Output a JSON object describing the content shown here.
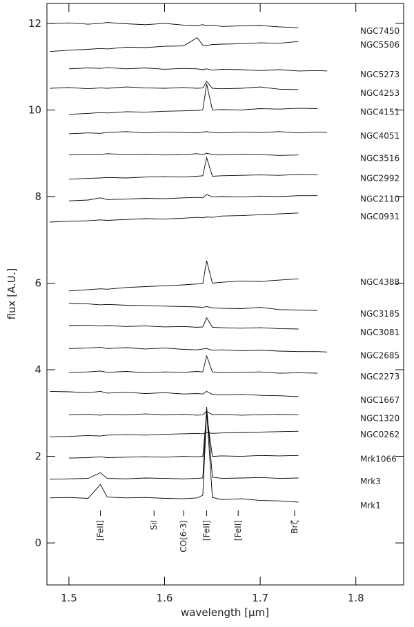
{
  "chart_data": {
    "type": "line",
    "x_label": "wavelength [μm]",
    "y_label": "flux [A.U.]",
    "xlim": [
      1.477,
      1.85
    ],
    "ylim": [
      -0.97,
      12.46
    ],
    "xticks": [
      1.5,
      1.6,
      1.7,
      1.8
    ],
    "yticks": [
      0,
      2,
      4,
      6,
      8,
      10,
      12
    ],
    "line_color": "#000000",
    "x": [
      1.48,
      1.5,
      1.52,
      1.533,
      1.54,
      1.56,
      1.58,
      1.6,
      1.62,
      1.634,
      1.64,
      1.644,
      1.65,
      1.66,
      1.68,
      1.7,
      1.72,
      1.74,
      1.76,
      1.77
    ],
    "series": [
      {
        "name": "NGC7450",
        "values": [
          12.0,
          12.01,
          11.98,
          12.0,
          12.02,
          11.99,
          11.97,
          12.0,
          11.96,
          11.95,
          11.97,
          11.95,
          11.96,
          11.93,
          11.94,
          11.95,
          11.92,
          11.9,
          null,
          null
        ]
      },
      {
        "name": "NGC5506",
        "values": [
          11.35,
          11.38,
          11.4,
          11.42,
          11.41,
          11.45,
          11.44,
          11.47,
          11.48,
          11.67,
          11.5,
          11.49,
          11.51,
          11.52,
          11.53,
          11.55,
          11.54,
          11.58,
          null,
          null
        ]
      },
      {
        "name": "NGC5273",
        "values": [
          null,
          10.95,
          10.97,
          10.96,
          10.98,
          10.95,
          10.97,
          10.94,
          10.96,
          10.95,
          10.93,
          10.95,
          10.92,
          10.94,
          10.93,
          10.91,
          10.93,
          10.9,
          10.91,
          10.9
        ]
      },
      {
        "name": "NGC4253",
        "values": [
          10.5,
          10.52,
          10.49,
          10.51,
          10.5,
          10.53,
          10.51,
          10.5,
          10.52,
          10.5,
          10.51,
          10.66,
          10.5,
          10.49,
          10.5,
          10.53,
          10.48,
          10.47,
          null,
          null
        ]
      },
      {
        "name": "NGC4151",
        "values": [
          null,
          9.9,
          9.92,
          9.94,
          9.93,
          9.96,
          9.95,
          9.97,
          9.98,
          9.99,
          10.0,
          10.6,
          10.0,
          10.01,
          10.0,
          10.03,
          10.02,
          10.04,
          10.03,
          null
        ]
      },
      {
        "name": "NGC4051",
        "values": [
          null,
          9.45,
          9.47,
          9.46,
          9.48,
          9.5,
          9.47,
          9.49,
          9.48,
          9.47,
          9.49,
          9.5,
          9.48,
          9.47,
          9.49,
          9.48,
          9.5,
          9.47,
          9.49,
          9.48
        ]
      },
      {
        "name": "NGC3516",
        "values": [
          null,
          8.96,
          8.98,
          8.97,
          8.99,
          8.97,
          8.98,
          8.96,
          8.97,
          8.99,
          8.97,
          9.0,
          8.97,
          8.96,
          8.98,
          8.97,
          8.95,
          8.96,
          null,
          null
        ]
      },
      {
        "name": "NGC2992",
        "values": [
          null,
          8.4,
          8.42,
          8.43,
          8.44,
          8.43,
          8.45,
          8.46,
          8.45,
          8.47,
          8.48,
          8.9,
          8.47,
          8.48,
          8.49,
          8.5,
          8.49,
          8.51,
          8.5,
          null
        ]
      },
      {
        "name": "NGC2110",
        "values": [
          null,
          7.9,
          7.92,
          7.97,
          7.93,
          7.94,
          7.96,
          7.95,
          7.97,
          7.98,
          7.97,
          8.05,
          7.99,
          8.0,
          7.99,
          8.01,
          8.0,
          8.02,
          8.02,
          null
        ]
      },
      {
        "name": "NGC0931",
        "values": [
          7.41,
          7.43,
          7.44,
          7.46,
          7.45,
          7.47,
          7.49,
          7.48,
          7.5,
          7.52,
          7.51,
          7.53,
          7.52,
          7.55,
          7.56,
          7.58,
          7.6,
          7.62,
          null,
          null
        ]
      },
      {
        "name": "NGC4388",
        "values": [
          null,
          5.82,
          5.85,
          5.87,
          5.86,
          5.9,
          5.92,
          5.94,
          5.96,
          5.98,
          5.99,
          6.52,
          6.0,
          6.02,
          6.05,
          6.04,
          6.07,
          6.1,
          null,
          null
        ]
      },
      {
        "name": "NGC3185",
        "values": [
          null,
          5.53,
          5.52,
          5.5,
          5.51,
          5.49,
          5.48,
          5.47,
          5.46,
          5.45,
          5.44,
          5.46,
          5.43,
          5.42,
          5.41,
          5.44,
          5.39,
          5.38,
          5.37,
          null
        ]
      },
      {
        "name": "NGC3081",
        "values": [
          null,
          5.02,
          5.03,
          5.01,
          5.02,
          5.0,
          5.01,
          4.99,
          5.0,
          4.98,
          4.99,
          5.2,
          4.98,
          4.97,
          4.96,
          4.97,
          4.95,
          4.94,
          null,
          null
        ]
      },
      {
        "name": "NGC2685",
        "values": [
          null,
          4.49,
          4.5,
          4.52,
          4.49,
          4.51,
          4.48,
          4.5,
          4.47,
          4.46,
          4.48,
          4.49,
          4.45,
          4.46,
          4.44,
          4.45,
          4.43,
          4.42,
          4.42,
          4.41
        ]
      },
      {
        "name": "NGC2273",
        "values": [
          null,
          3.94,
          3.95,
          3.97,
          3.94,
          3.96,
          3.93,
          3.95,
          3.94,
          3.96,
          3.95,
          4.32,
          3.95,
          3.93,
          3.94,
          3.95,
          3.92,
          3.93,
          3.92,
          null
        ]
      },
      {
        "name": "NGC1667",
        "values": [
          3.5,
          3.49,
          3.47,
          3.5,
          3.46,
          3.48,
          3.45,
          3.47,
          3.44,
          3.45,
          3.44,
          3.5,
          3.43,
          3.42,
          3.43,
          3.41,
          3.4,
          3.38,
          null,
          null
        ]
      },
      {
        "name": "NGC1320",
        "values": [
          null,
          2.96,
          2.97,
          2.95,
          2.97,
          2.96,
          2.98,
          2.96,
          2.97,
          2.95,
          2.96,
          3.04,
          2.96,
          2.97,
          2.95,
          2.96,
          2.97,
          2.96,
          null,
          null
        ]
      },
      {
        "name": "NGC0262",
        "values": [
          2.45,
          2.46,
          2.48,
          2.47,
          2.49,
          2.5,
          2.49,
          2.51,
          2.52,
          2.53,
          2.52,
          2.55,
          2.53,
          2.54,
          2.55,
          2.56,
          2.57,
          2.58,
          null,
          null
        ]
      },
      {
        "name": "Mrk1066",
        "values": [
          null,
          1.96,
          1.97,
          1.99,
          1.97,
          1.98,
          1.99,
          1.98,
          2.0,
          1.99,
          2.0,
          2.98,
          2.0,
          2.01,
          2.0,
          2.02,
          2.01,
          2.02,
          null,
          null
        ]
      },
      {
        "name": "Mrk3",
        "values": [
          1.47,
          1.48,
          1.49,
          1.62,
          1.49,
          1.48,
          1.5,
          1.49,
          1.48,
          1.49,
          1.5,
          3.14,
          1.52,
          1.49,
          1.5,
          1.51,
          1.49,
          1.5,
          null,
          null
        ]
      },
      {
        "name": "Mrk1",
        "values": [
          1.04,
          1.05,
          1.03,
          1.35,
          1.06,
          1.04,
          1.05,
          1.03,
          1.02,
          1.04,
          1.1,
          3.04,
          1.05,
          1.0,
          1.02,
          0.98,
          0.97,
          0.94,
          null,
          null
        ]
      }
    ],
    "annotations": [
      {
        "x": 1.533,
        "label": "[FeII]"
      },
      {
        "x": 1.589,
        "label": "SiI"
      },
      {
        "x": 1.62,
        "label": "CO(6-3)"
      },
      {
        "x": 1.644,
        "label": "[FeII]"
      },
      {
        "x": 1.677,
        "label": "[FeII]"
      },
      {
        "x": 1.736,
        "label": "Brζ"
      }
    ]
  }
}
